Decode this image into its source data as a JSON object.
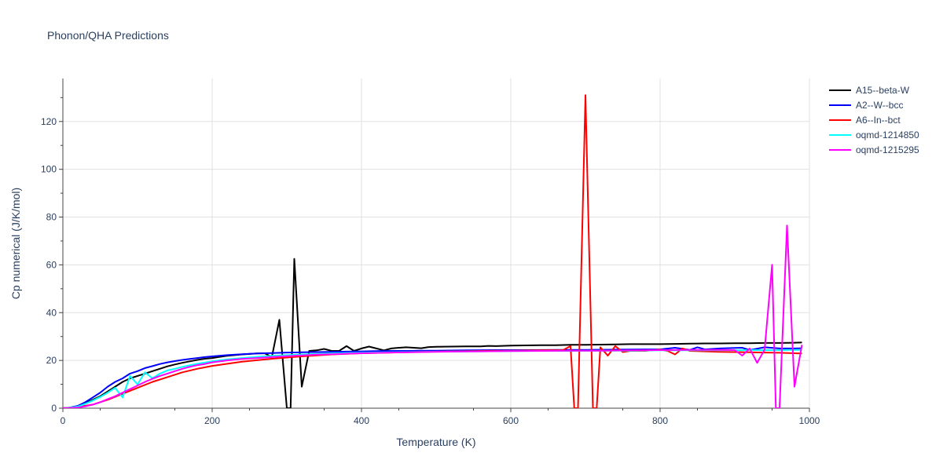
{
  "chart_data": {
    "type": "line",
    "title": "Phonon/QHA Predictions",
    "xlabel": "Temperature (K)",
    "ylabel": "Cp numerical (J/K/mol)",
    "xlim": [
      0,
      1000
    ],
    "ylim": [
      0,
      138
    ],
    "xticks": [
      0,
      200,
      400,
      600,
      800,
      1000
    ],
    "yticks": [
      0,
      20,
      40,
      60,
      80,
      100,
      120
    ],
    "grid": true,
    "legend_position": "top-right",
    "series": [
      {
        "name": "A15--beta-W",
        "color": "#000000",
        "x": [
          0,
          10,
          20,
          30,
          40,
          50,
          60,
          70,
          80,
          90,
          100,
          110,
          120,
          130,
          140,
          150,
          160,
          170,
          180,
          190,
          200,
          210,
          220,
          230,
          240,
          250,
          260,
          270,
          280,
          290,
          300,
          305,
          310,
          320,
          330,
          340,
          350,
          360,
          370,
          380,
          390,
          400,
          410,
          420,
          430,
          440,
          450,
          460,
          470,
          480,
          490,
          500,
          520,
          540,
          560,
          570,
          580,
          600,
          620,
          640,
          660,
          680,
          700,
          720,
          740,
          760,
          780,
          800,
          820,
          840,
          860,
          880,
          900,
          920,
          940,
          960,
          980,
          990
        ],
        "y": [
          0,
          0.2,
          0.8,
          2,
          3.5,
          5,
          7,
          9,
          11,
          12.5,
          13.5,
          14.5,
          15.5,
          16.5,
          17.5,
          18.3,
          19,
          19.6,
          20.2,
          20.7,
          21,
          21.5,
          21.9,
          22.2,
          22.5,
          22.7,
          22.9,
          23,
          21.5,
          37,
          0,
          0,
          62.5,
          9,
          24,
          24.2,
          24.8,
          24,
          24,
          26,
          24,
          25,
          25.8,
          25,
          24.2,
          25,
          25.3,
          25.5,
          25.3,
          25.1,
          25.6,
          25.7,
          25.8,
          25.9,
          25.9,
          26.1,
          26,
          26.2,
          26.3,
          26.4,
          26.4,
          26.5,
          26.5,
          26.6,
          26.7,
          26.8,
          26.8,
          26.8,
          26.9,
          27,
          27.1,
          27.1,
          27.2,
          27.2,
          27.3,
          27.3,
          27.4,
          27.5
        ]
      },
      {
        "name": "A2--W--bcc",
        "color": "#0000ff",
        "x": [
          0,
          10,
          20,
          30,
          40,
          50,
          60,
          70,
          80,
          90,
          100,
          110,
          120,
          130,
          140,
          150,
          160,
          170,
          180,
          190,
          200,
          220,
          240,
          260,
          280,
          300,
          320,
          340,
          360,
          380,
          400,
          420,
          440,
          460,
          480,
          500,
          540,
          580,
          620,
          660,
          700,
          740,
          780,
          800,
          820,
          840,
          850,
          860,
          880,
          900,
          910,
          920,
          940,
          960,
          980,
          990
        ],
        "y": [
          0,
          0.3,
          1,
          2.5,
          4.5,
          6.5,
          9,
          11,
          12.5,
          14.5,
          15.5,
          16.8,
          17.6,
          18.5,
          19.2,
          19.7,
          20.2,
          20.6,
          21,
          21.4,
          21.7,
          22.2,
          22.6,
          22.9,
          23.1,
          23.3,
          23.4,
          23.5,
          23.6,
          23.7,
          23.8,
          23.9,
          24,
          24,
          24.1,
          24.1,
          24.2,
          24.3,
          24.3,
          24.4,
          24.4,
          24.5,
          24.6,
          24.6,
          25.3,
          24.4,
          25.5,
          24.6,
          25,
          25.2,
          25.3,
          24.3,
          25.5,
          25,
          25,
          25.1
        ]
      },
      {
        "name": "A6--In--bct",
        "color": "#ff0000",
        "x": [
          0,
          20,
          40,
          60,
          80,
          100,
          120,
          140,
          160,
          180,
          200,
          240,
          280,
          320,
          360,
          400,
          440,
          480,
          520,
          560,
          600,
          640,
          670,
          680,
          685,
          690,
          700,
          710,
          715,
          720,
          730,
          740,
          750,
          760,
          780,
          800,
          810,
          820,
          830,
          840,
          860,
          880,
          900,
          920,
          940,
          960,
          980,
          990
        ],
        "y": [
          0,
          0.5,
          1.5,
          3.5,
          6,
          8.5,
          11,
          13,
          15,
          16.5,
          17.7,
          19.5,
          20.7,
          21.7,
          22.5,
          23,
          23.3,
          23.6,
          23.8,
          24,
          24.1,
          24.2,
          24.3,
          26,
          0,
          0,
          131,
          0,
          0,
          25.5,
          22,
          26,
          23.5,
          24,
          24,
          24.5,
          24,
          22.5,
          25,
          24,
          23.8,
          23.6,
          23.5,
          23.4,
          23.3,
          23.2,
          23,
          22.9
        ]
      },
      {
        "name": "oqmd-1214850",
        "color": "#00ffff",
        "x": [
          0,
          10,
          20,
          30,
          40,
          50,
          60,
          70,
          80,
          90,
          100,
          110,
          120,
          130,
          140,
          150,
          160,
          180,
          200,
          220,
          240,
          260,
          280,
          300,
          320,
          360,
          400,
          440,
          480,
          520,
          560,
          600,
          640,
          680,
          720,
          760,
          800,
          840,
          880,
          920,
          940,
          960,
          980,
          990
        ],
        "y": [
          0,
          0.2,
          0.7,
          1.8,
          3.2,
          4.7,
          6.5,
          8.5,
          4.5,
          13.5,
          10,
          15,
          12.5,
          14.5,
          15.8,
          16.5,
          17.3,
          18.6,
          19.6,
          20.4,
          21,
          21.5,
          21.9,
          22.2,
          22.5,
          22.9,
          23.2,
          23.4,
          23.6,
          23.7,
          23.8,
          23.9,
          24,
          24,
          24.1,
          24.1,
          24.2,
          24.2,
          24.2,
          24.3,
          24.3,
          24.3,
          24.4,
          24.4
        ]
      },
      {
        "name": "oqmd-1215295",
        "color": "#ff00ff",
        "x": [
          0,
          10,
          20,
          30,
          40,
          50,
          60,
          70,
          80,
          90,
          100,
          110,
          120,
          130,
          140,
          150,
          160,
          170,
          180,
          190,
          200,
          220,
          240,
          260,
          280,
          300,
          320,
          340,
          360,
          380,
          400,
          440,
          480,
          520,
          560,
          600,
          640,
          680,
          720,
          760,
          800,
          840,
          880,
          900,
          910,
          920,
          930,
          940,
          950,
          955,
          960,
          970,
          980,
          990
        ],
        "y": [
          0,
          0.1,
          0.3,
          0.8,
          1.5,
          2.5,
          3.8,
          5,
          6.5,
          8,
          9.5,
          11,
          12.3,
          13.5,
          14.5,
          15.5,
          16.5,
          17.3,
          18,
          18.5,
          19.2,
          20,
          20.6,
          21,
          21.4,
          21.8,
          22.1,
          22.4,
          22.6,
          22.8,
          23,
          23.3,
          23.5,
          23.7,
          23.8,
          23.9,
          24,
          24.1,
          24.1,
          24.2,
          24.3,
          24.4,
          24.4,
          24.3,
          22,
          25,
          19,
          24.5,
          60,
          0,
          0,
          76.5,
          9,
          26.5
        ]
      }
    ]
  }
}
